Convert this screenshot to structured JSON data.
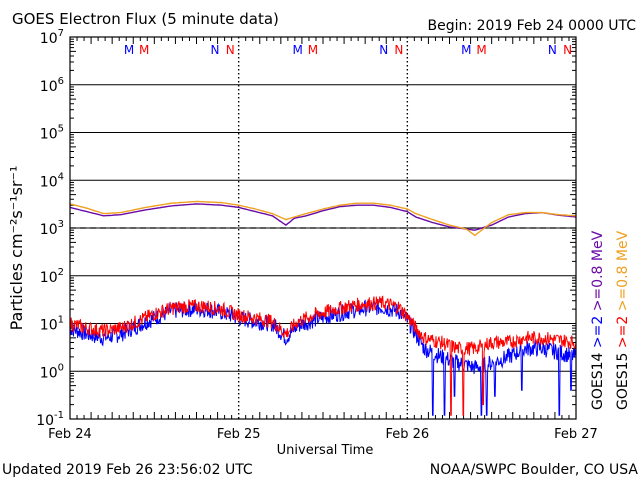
{
  "header": {
    "title": "GOES Electron Flux (5 minute data)",
    "begin": "Begin: 2019 Feb 24 0000 UTC"
  },
  "footer": {
    "updated": "Updated 2019 Feb 26 23:56:02 UTC",
    "credit": "NOAA/SWPC Boulder, CO USA"
  },
  "colors": {
    "goes14_hi": "#0000ff",
    "goes15_hi": "#ff0000",
    "goes14_lo": "#6a0aa8",
    "goes15_lo": "#f0a020",
    "threshold": "#000000"
  },
  "chart_data": {
    "type": "line",
    "title": "GOES Electron Flux (5 minute data)",
    "xlabel": "Universal Time",
    "ylabel": "Particles cm⁻²s⁻¹sr⁻¹",
    "yscale": "log",
    "ylim": [
      0.1,
      10000000
    ],
    "xlim": [
      "2019-02-24",
      "2019-02-27"
    ],
    "x_ticks": [
      "Feb 24",
      "Feb 25",
      "Feb 26",
      "Feb 27"
    ],
    "y_ticks": [
      {
        "base": "10",
        "exp": "-1",
        "value": 0.1
      },
      {
        "base": "10",
        "exp": "0",
        "value": 1
      },
      {
        "base": "10",
        "exp": "1",
        "value": 10
      },
      {
        "base": "10",
        "exp": "2",
        "value": 100
      },
      {
        "base": "10",
        "exp": "3",
        "value": 1000
      },
      {
        "base": "10",
        "exp": "4",
        "value": 10000
      },
      {
        "base": "10",
        "exp": "5",
        "value": 100000
      },
      {
        "base": "10",
        "exp": "6",
        "value": 1000000
      },
      {
        "base": "10",
        "exp": "7",
        "value": 10000000
      }
    ],
    "grid": "horizontal at each decade",
    "threshold": {
      "value": 1000,
      "style": "dashed"
    },
    "markers": {
      "labels": [
        {
          "text": "M",
          "day": 0.35,
          "color": "#0000ff"
        },
        {
          "text": "M",
          "day": 0.44,
          "color": "#ff0000"
        },
        {
          "text": "N",
          "day": 0.86,
          "color": "#0000ff"
        },
        {
          "text": "N",
          "day": 0.95,
          "color": "#ff0000"
        },
        {
          "text": "M",
          "day": 1.35,
          "color": "#0000ff"
        },
        {
          "text": "M",
          "day": 1.44,
          "color": "#ff0000"
        },
        {
          "text": "N",
          "day": 1.86,
          "color": "#0000ff"
        },
        {
          "text": "N",
          "day": 1.95,
          "color": "#ff0000"
        },
        {
          "text": "M",
          "day": 2.35,
          "color": "#0000ff"
        },
        {
          "text": "M",
          "day": 2.44,
          "color": "#ff0000"
        },
        {
          "text": "N",
          "day": 2.86,
          "color": "#0000ff"
        },
        {
          "text": "N",
          "day": 2.95,
          "color": "#ff0000"
        }
      ]
    },
    "legend": {
      "placement": "right",
      "columns": [
        {
          "sat": "GOES14",
          "hi": ">=2",
          "lo": ">=0.8",
          "unit": "MeV",
          "hi_color": "#0000ff",
          "lo_color": "#6a0aa8"
        },
        {
          "sat": "GOES15",
          "hi": ">=2",
          "lo": ">=0.8",
          "unit": "MeV",
          "hi_color": "#ff0000",
          "lo_color": "#f0a020"
        }
      ]
    },
    "series": [
      {
        "name": "GOES14 >=0.8 MeV",
        "color": "#6a0aa8",
        "x_days": [
          0,
          0.1,
          0.2,
          0.3,
          0.45,
          0.6,
          0.75,
          0.9,
          1.0,
          1.1,
          1.2,
          1.28,
          1.33,
          1.4,
          1.5,
          1.6,
          1.7,
          1.8,
          1.9,
          2.0,
          2.05,
          2.15,
          2.25,
          2.35,
          2.4,
          2.5,
          2.6,
          2.7,
          2.8,
          2.9,
          3.0
        ],
        "values": [
          2700,
          2200,
          1800,
          1900,
          2400,
          2900,
          3200,
          3000,
          2700,
          2200,
          1800,
          1150,
          1600,
          1800,
          2300,
          2800,
          3000,
          3000,
          2700,
          2200,
          1700,
          1300,
          1050,
          950,
          900,
          1150,
          1700,
          2000,
          2100,
          1850,
          1700
        ]
      },
      {
        "name": "GOES15 >=0.8 MeV",
        "color": "#f0a020",
        "x_days": [
          0,
          0.1,
          0.2,
          0.3,
          0.45,
          0.6,
          0.75,
          0.9,
          1.0,
          1.1,
          1.2,
          1.28,
          1.33,
          1.4,
          1.5,
          1.6,
          1.7,
          1.8,
          1.9,
          2.0,
          2.05,
          2.15,
          2.25,
          2.35,
          2.4,
          2.5,
          2.6,
          2.7,
          2.8,
          2.9,
          3.0
        ],
        "values": [
          3200,
          2600,
          2000,
          2100,
          2700,
          3300,
          3600,
          3400,
          3000,
          2500,
          2000,
          1500,
          1700,
          2000,
          2500,
          3000,
          3300,
          3300,
          3000,
          2500,
          2000,
          1500,
          1150,
          950,
          700,
          1300,
          1900,
          2100,
          2100,
          1900,
          1800
        ]
      },
      {
        "name": "GOES14 >=2 MeV",
        "color": "#0000ff",
        "x_days": [
          0,
          0.1,
          0.2,
          0.3,
          0.4,
          0.5,
          0.6,
          0.7,
          0.8,
          0.9,
          1.0,
          1.1,
          1.2,
          1.28,
          1.35,
          1.45,
          1.55,
          1.65,
          1.75,
          1.85,
          1.95,
          2.0,
          2.05,
          2.1,
          2.2,
          2.3,
          2.4,
          2.5,
          2.6,
          2.7,
          2.8,
          2.9,
          3.0
        ],
        "values": [
          8,
          6,
          5,
          6,
          9,
          13,
          18,
          20,
          20,
          17,
          13,
          11,
          10,
          5,
          9,
          12,
          15,
          18,
          21,
          22,
          18,
          12,
          6,
          3,
          2,
          1.5,
          1.2,
          1.5,
          2,
          3,
          3,
          2.5,
          2
        ],
        "noise": 0.35,
        "drops": [
          {
            "day": 2.15,
            "value": 0.12
          },
          {
            "day": 2.22,
            "value": 0.12
          },
          {
            "day": 2.28,
            "value": 0.3
          },
          {
            "day": 2.44,
            "value": 0.12
          },
          {
            "day": 2.47,
            "value": 0.12
          },
          {
            "day": 2.52,
            "value": 0.3
          },
          {
            "day": 2.68,
            "value": 0.4
          },
          {
            "day": 2.9,
            "value": 0.12
          },
          {
            "day": 2.97,
            "value": 0.4
          }
        ]
      },
      {
        "name": "GOES15 >=2 MeV",
        "color": "#ff0000",
        "x_days": [
          0,
          0.1,
          0.2,
          0.3,
          0.4,
          0.5,
          0.6,
          0.7,
          0.8,
          0.9,
          1.0,
          1.1,
          1.2,
          1.28,
          1.35,
          1.45,
          1.55,
          1.65,
          1.75,
          1.85,
          1.95,
          2.0,
          2.05,
          2.1,
          2.2,
          2.3,
          2.4,
          2.5,
          2.6,
          2.7,
          2.8,
          2.9,
          3.0
        ],
        "values": [
          10,
          8,
          7,
          8,
          11,
          16,
          21,
          23,
          23,
          20,
          15,
          13,
          11,
          6,
          11,
          15,
          19,
          23,
          26,
          27,
          22,
          14,
          8,
          5,
          4,
          3,
          3,
          4,
          4,
          5,
          5,
          4.5,
          4
        ],
        "noise": 0.3,
        "drops": [
          {
            "day": 2.26,
            "value": 0.12
          },
          {
            "day": 2.33,
            "value": 0.12
          },
          {
            "day": 2.45,
            "value": 0.2
          }
        ]
      }
    ]
  }
}
